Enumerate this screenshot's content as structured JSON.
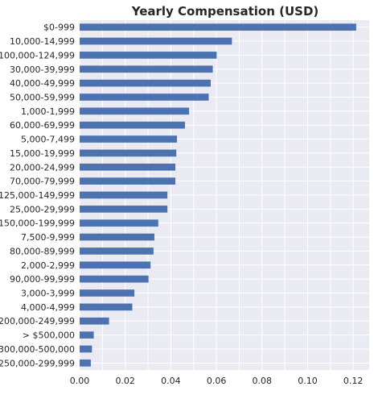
{
  "chart_data": {
    "type": "bar",
    "orientation": "horizontal",
    "title": "Yearly Compensation (USD)",
    "xlabel": "",
    "ylabel": "",
    "xlim": [
      0,
      0.127
    ],
    "xticks": [
      0.0,
      0.02,
      0.04,
      0.06,
      0.08,
      0.1,
      0.12
    ],
    "xtick_labels": [
      "0.00",
      "0.02",
      "0.04",
      "0.06",
      "0.08",
      "0.10",
      "0.12"
    ],
    "grid": true,
    "legend": "none",
    "colors": {
      "bar": "#4c72b0",
      "plot_background": "#eaeaf2",
      "grid": "#ffffff"
    },
    "categories": [
      "$0-999",
      "10,000-14,999",
      "100,000-124,999",
      "30,000-39,999",
      "40,000-49,999",
      "50,000-59,999",
      "1,000-1,999",
      "60,000-69,999",
      "5,000-7,499",
      "15,000-19,999",
      "20,000-24,999",
      "70,000-79,999",
      "125,000-149,999",
      "25,000-29,999",
      "150,000-199,999",
      "7,500-9,999",
      "80,000-89,999",
      "2,000-2,999",
      "90,000-99,999",
      "3,000-3,999",
      "4,000-4,999",
      "200,000-249,999",
      "> $500,000",
      "300,000-500,000",
      "250,000-299,999"
    ],
    "values": [
      0.1213,
      0.0668,
      0.0601,
      0.0584,
      0.0575,
      0.0566,
      0.048,
      0.0462,
      0.0427,
      0.0424,
      0.042,
      0.042,
      0.0385,
      0.0385,
      0.0345,
      0.0328,
      0.0324,
      0.0311,
      0.0302,
      0.024,
      0.0231,
      0.0129,
      0.0062,
      0.0054,
      0.0049
    ]
  }
}
